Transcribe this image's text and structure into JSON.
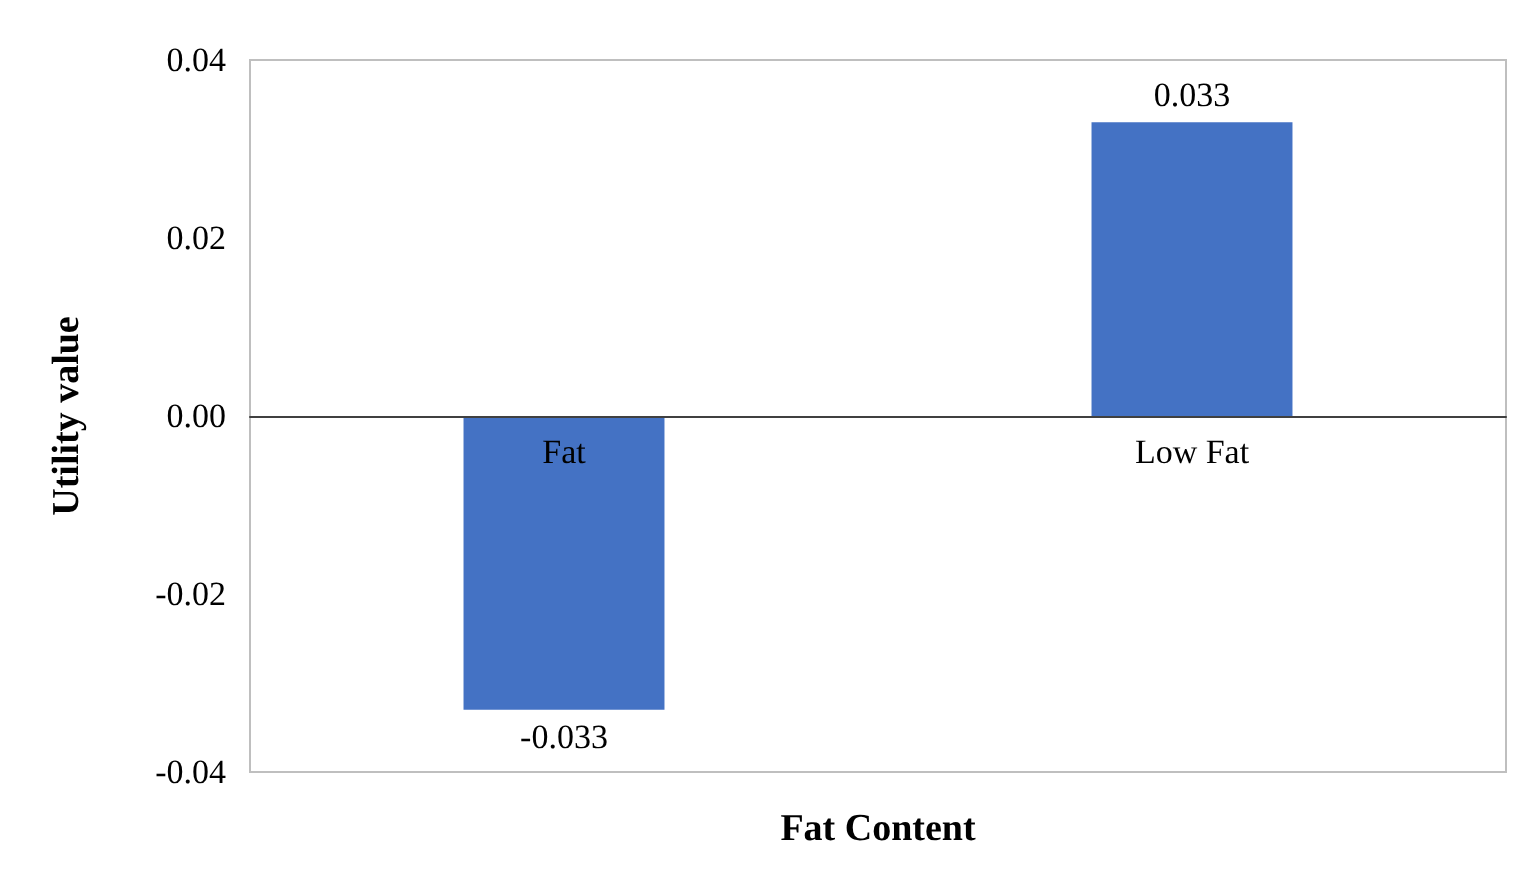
{
  "chart_data": {
    "type": "bar",
    "xlabel": "Fat Content",
    "ylabel": "Utility value",
    "categories": [
      "Fat",
      "Low Fat"
    ],
    "values": [
      -0.033,
      0.033
    ],
    "color": "#4472c4",
    "ylim": [
      -0.04,
      0.04
    ],
    "yticks": [
      {
        "value": -0.04,
        "label": "-0.04"
      },
      {
        "value": -0.02,
        "label": "-0.02"
      },
      {
        "value": 0,
        "label": "0.00"
      },
      {
        "value": 0.02,
        "label": "0.02"
      },
      {
        "value": 0.04,
        "label": "0.04"
      }
    ],
    "data_labels": true
  }
}
